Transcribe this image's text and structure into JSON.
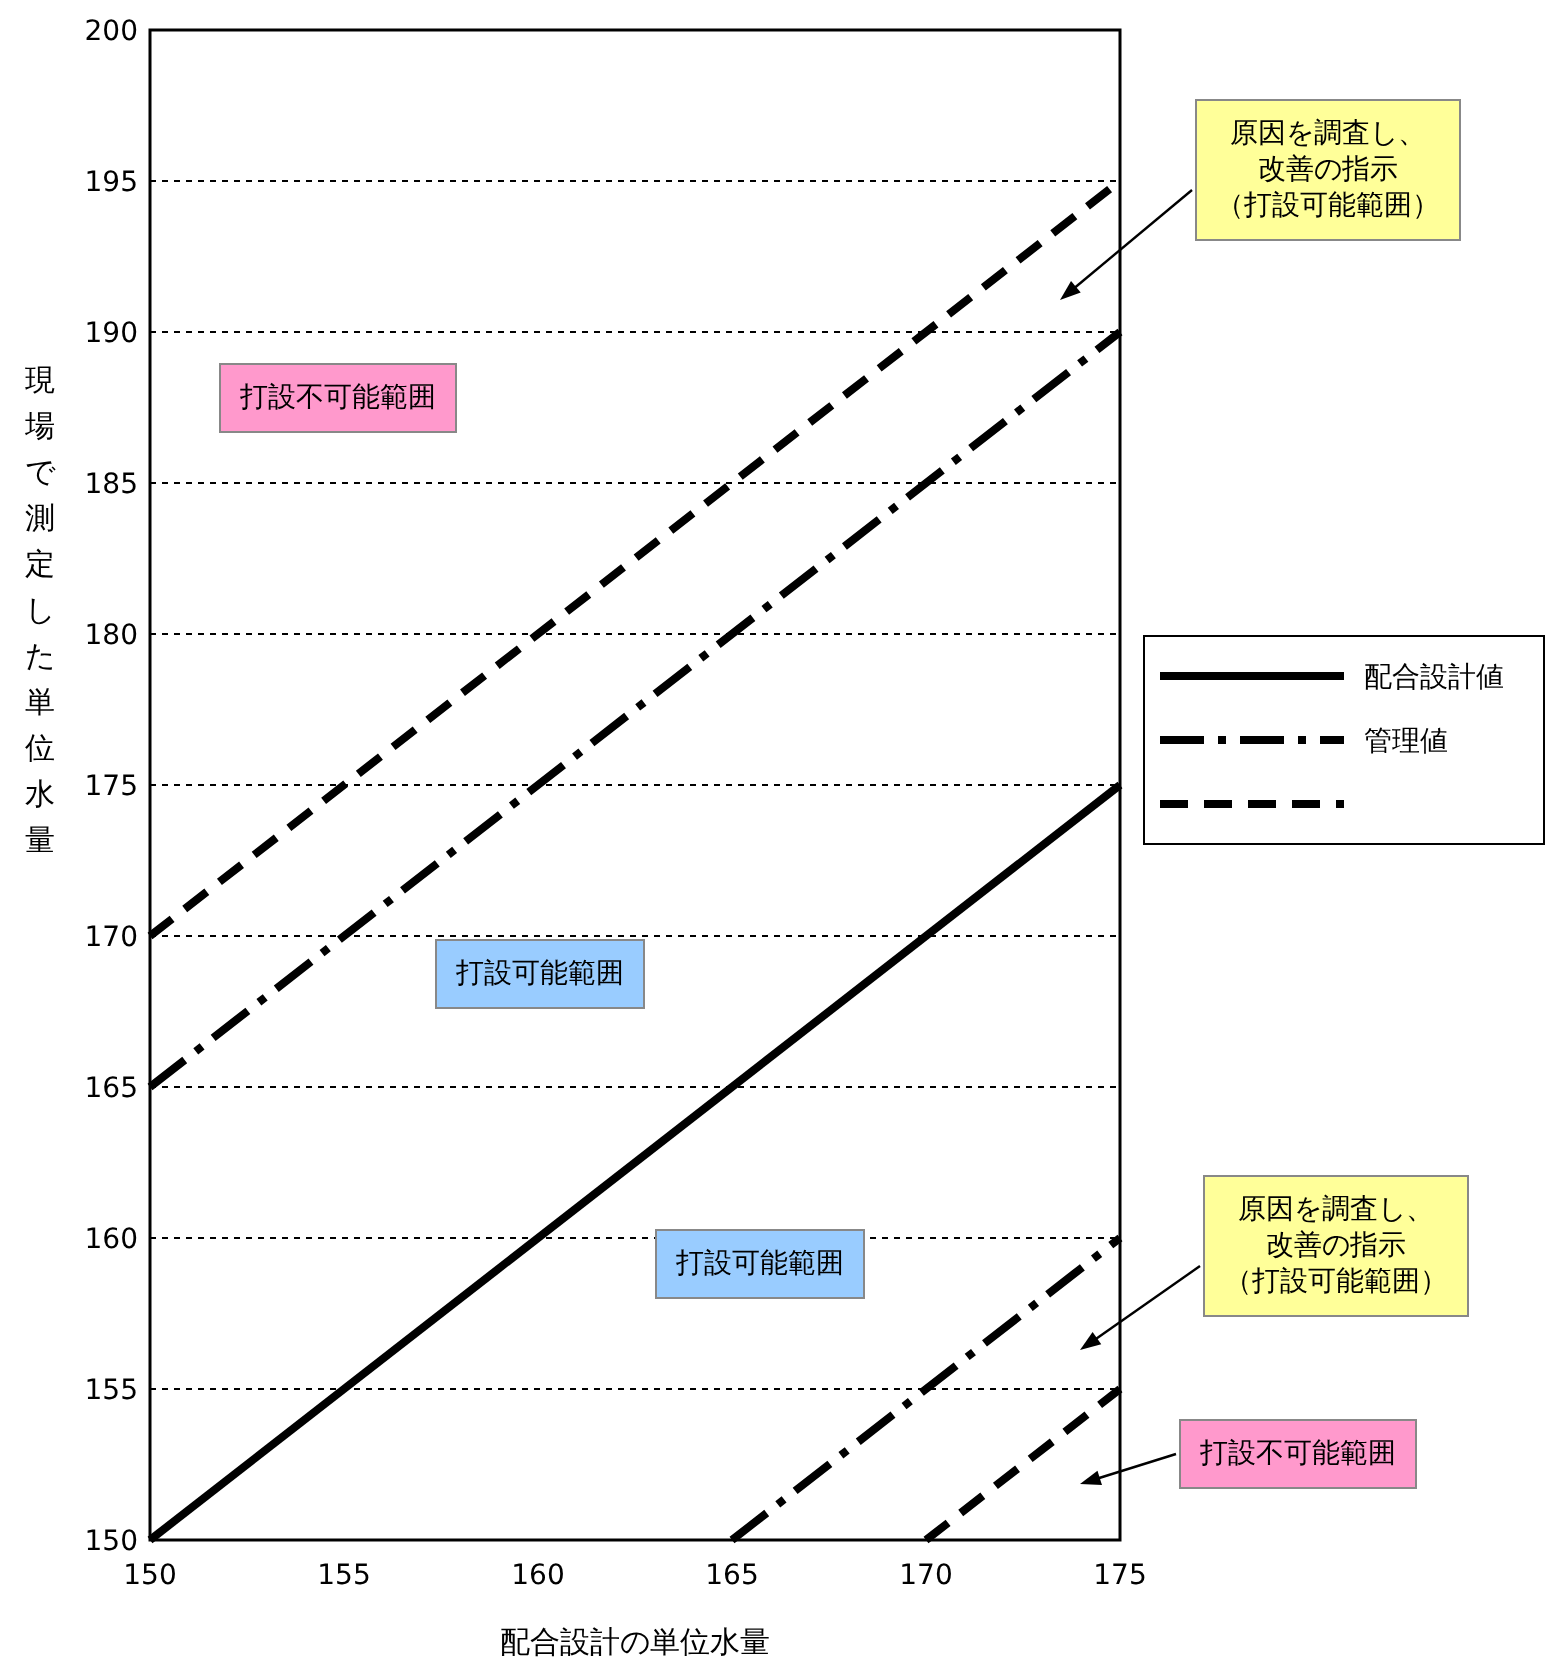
{
  "chart_data": {
    "type": "line",
    "xlabel": "配合設計の単位水量",
    "ylabel": "現場で測定した単位水量",
    "xlim": [
      150,
      175
    ],
    "ylim": [
      150,
      200
    ],
    "xticks": [
      150,
      155,
      160,
      165,
      170,
      175
    ],
    "yticks": [
      150,
      155,
      160,
      165,
      170,
      175,
      180,
      185,
      190,
      195,
      200
    ],
    "grid": "y",
    "legend": "right",
    "series": [
      {
        "name": "配合設計値",
        "color": "#000000",
        "line_style": "solid",
        "x": [
          150,
          175
        ],
        "values": [
          150,
          175
        ]
      },
      {
        "name": "管理値",
        "color": "#000000",
        "line_style": "dashdot",
        "x": [
          150,
          175,
          null,
          165,
          175
        ],
        "values": [
          165,
          190,
          null,
          150,
          160
        ]
      },
      {
        "color": "#000000",
        "line_style": "dashed",
        "x": [
          150,
          175,
          null,
          170,
          175
        ],
        "values": [
          170,
          195,
          null,
          150,
          155
        ]
      }
    ],
    "annotations": [
      "打設不可能範囲",
      "原因を調査し、改善の指示（打設可能範囲）",
      "打設可能範囲",
      "打設可能範囲",
      "原因を調査し、改善の指示（打設可能範囲）",
      "打設不可能範囲"
    ]
  }
}
